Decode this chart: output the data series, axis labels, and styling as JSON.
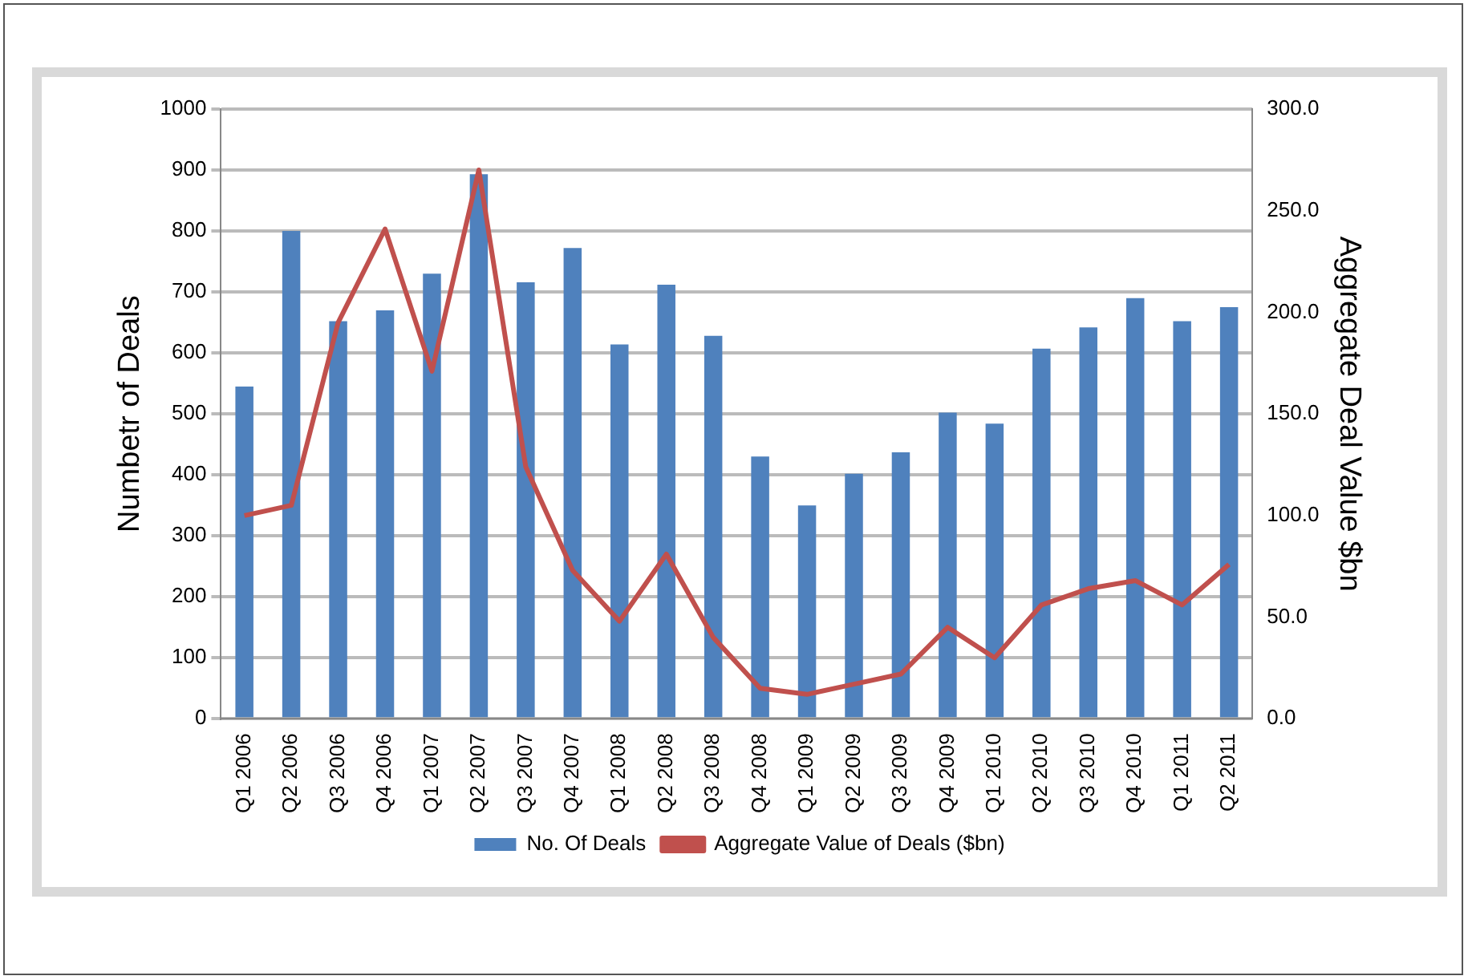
{
  "chart_data": {
    "type": "bar",
    "ylabel": "Numbetr of Deals",
    "y2label": "Aggregate Deal Value $bn",
    "categories": [
      "Q1 2006",
      "Q2 2006",
      "Q3 2006",
      "Q4 2006",
      "Q1 2007",
      "Q2 2007",
      "Q3 2007",
      "Q4 2007",
      "Q1 2008",
      "Q2 2008",
      "Q3 2008",
      "Q4 2008",
      "Q1 2009",
      "Q2 2009",
      "Q3 2009",
      "Q4 2009",
      "Q1 2010",
      "Q2 2010",
      "Q3 2010",
      "Q4 2010",
      "Q1 2011",
      "Q2 2011"
    ],
    "series": [
      {
        "name": "No. Of Deals",
        "color": "#4f81bd",
        "values": [
          545,
          800,
          652,
          670,
          730,
          893,
          716,
          772,
          614,
          712,
          628,
          430,
          350,
          402,
          437,
          502,
          484,
          607,
          642,
          690,
          652,
          675
        ]
      },
      {
        "name": "Aggregate Value of Deals ($bn)",
        "type": "line",
        "axis": "y2",
        "color": "#c0504d",
        "values": [
          100,
          105,
          195,
          241,
          171,
          270,
          124,
          73,
          48,
          81,
          40,
          15,
          12,
          17,
          22,
          45,
          30,
          56,
          64,
          68,
          56,
          76
        ]
      }
    ],
    "ylim": [
      0,
      1000
    ],
    "yticks": [
      0,
      100,
      200,
      300,
      400,
      500,
      600,
      700,
      800,
      900,
      1000
    ],
    "y2lim": [
      0,
      300
    ],
    "y2ticks": [
      {
        "value": 0,
        "label": "0.0"
      },
      {
        "value": 50,
        "label": "50.0"
      },
      {
        "value": 100,
        "label": "100.0"
      },
      {
        "value": 150,
        "label": "150.0"
      },
      {
        "value": 200,
        "label": "200.0"
      },
      {
        "value": 250,
        "label": "250.0"
      },
      {
        "value": 300,
        "label": "300.0"
      }
    ],
    "grid": "y",
    "legend": "bottom",
    "marker": "none",
    "line_style": "solid"
  }
}
